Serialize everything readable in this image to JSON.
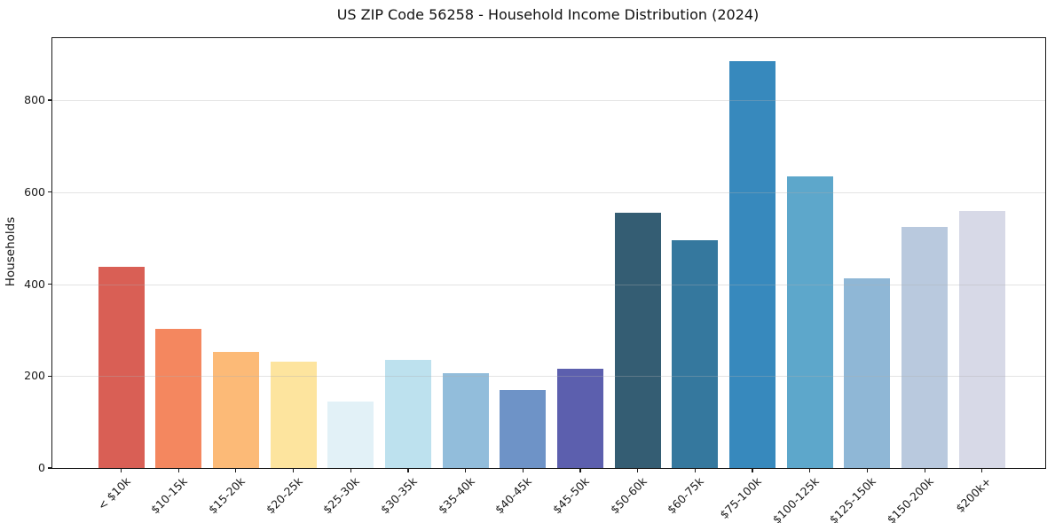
{
  "chart_data": {
    "type": "bar",
    "title": "US ZIP Code 56258 - Household Income Distribution (2024)",
    "xlabel": "",
    "ylabel": "Households",
    "categories": [
      "< $10k",
      "$10-15k",
      "$15-20k",
      "$20-25k",
      "$25-30k",
      "$30-35k",
      "$35-40k",
      "$40-45k",
      "$45-50k",
      "$50-60k",
      "$60-75k",
      "$75-100k",
      "$100-125k",
      "$125-150k",
      "$150-200k",
      "$200k+"
    ],
    "values": [
      438,
      303,
      253,
      232,
      145,
      236,
      207,
      170,
      215,
      556,
      495,
      884,
      635,
      412,
      524,
      559
    ],
    "bar_colors": [
      "#d95f55",
      "#f4875f",
      "#fcba77",
      "#fde49e",
      "#e2f1f7",
      "#bde1ee",
      "#92bddb",
      "#6e93c7",
      "#5c5fae",
      "#345d73",
      "#35789e",
      "#3789bd",
      "#5da7cb",
      "#8fb7d6",
      "#b9c9de",
      "#d7d9e7"
    ],
    "yticks": [
      0,
      200,
      400,
      600,
      800
    ],
    "ylim": [
      0,
      935
    ],
    "grid": "horizontal",
    "legend": "none",
    "tick_rotation": 45
  }
}
